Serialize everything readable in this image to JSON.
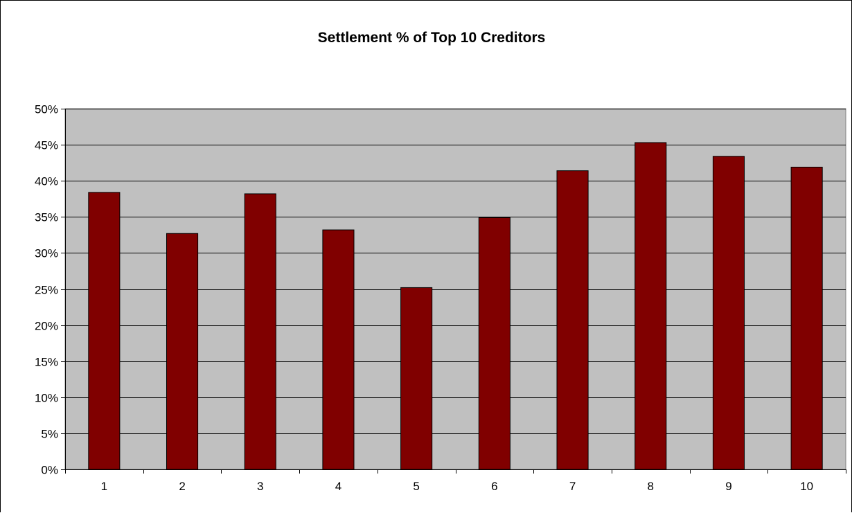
{
  "chart_data": {
    "type": "bar",
    "title": "Settlement % of Top 10 Creditors",
    "xlabel": "",
    "ylabel": "",
    "categories": [
      "1",
      "2",
      "3",
      "4",
      "5",
      "6",
      "7",
      "8",
      "9",
      "10"
    ],
    "values": [
      38.4,
      32.7,
      38.2,
      33.2,
      25.2,
      34.9,
      41.4,
      45.3,
      43.4,
      41.9
    ],
    "ylim": [
      0,
      50
    ],
    "y_tick_labels": [
      "0%",
      "5%",
      "10%",
      "15%",
      "20%",
      "25%",
      "30%",
      "35%",
      "40%",
      "45%",
      "50%"
    ],
    "grid": true,
    "legend": "none",
    "colors": {
      "bar": "#800000",
      "plot_background": "#c0c0c0",
      "gridline": "#000000"
    }
  }
}
